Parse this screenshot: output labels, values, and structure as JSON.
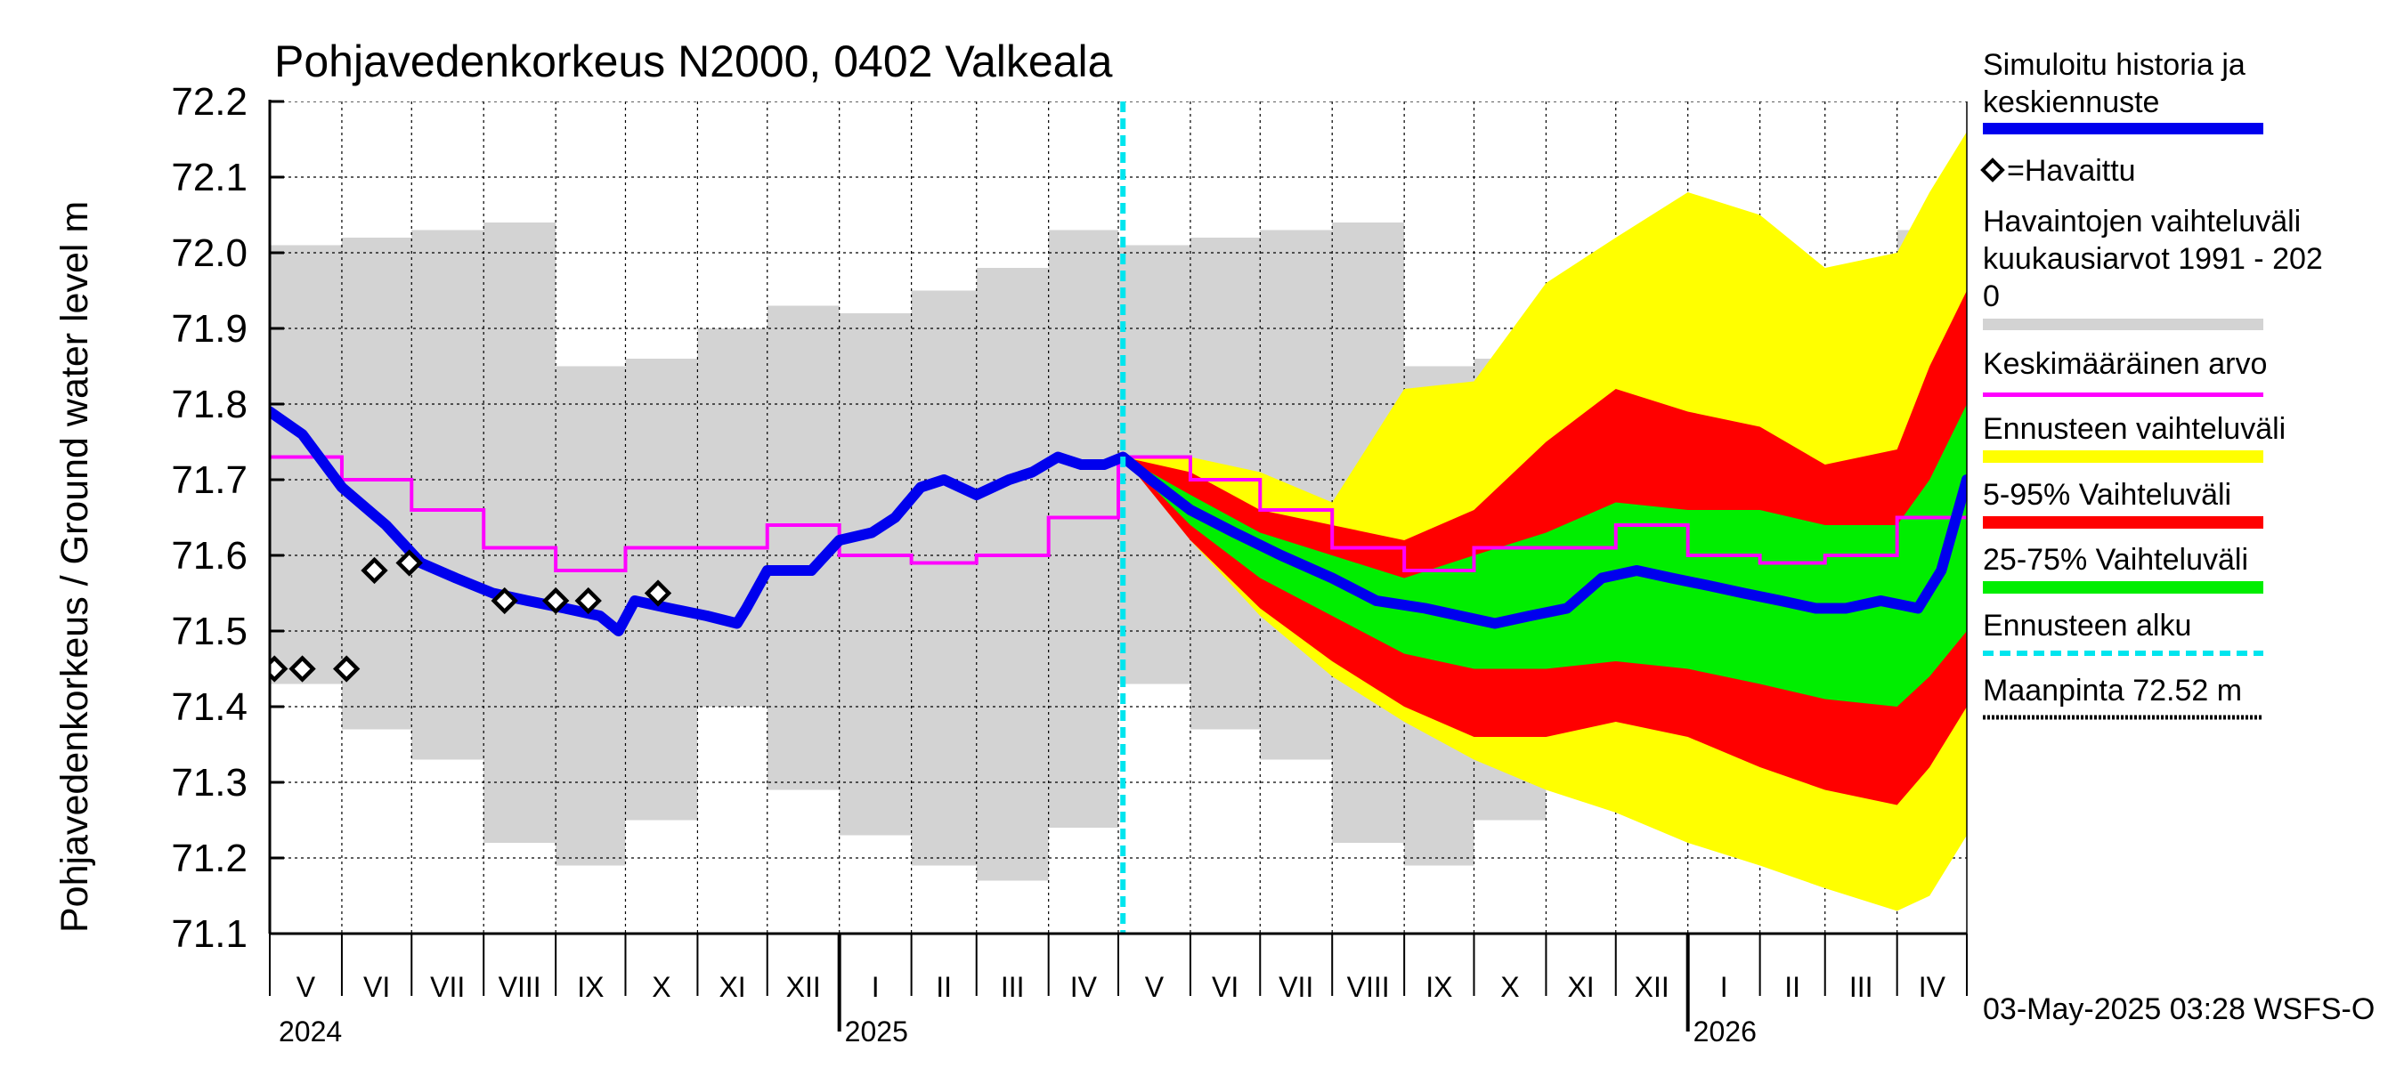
{
  "chart_data": {
    "type": "area",
    "title": "Pohjavedenkorkeus N2000, 0402 Valkeala",
    "ylabel": "Pohjavedenkorkeus / Ground water level   m",
    "ylim": [
      71.1,
      72.2
    ],
    "yticks": [
      71.1,
      71.2,
      71.3,
      71.4,
      71.5,
      71.6,
      71.7,
      71.8,
      71.9,
      72.0,
      72.1,
      72.2
    ],
    "xlim": [
      "2024-05-01",
      "2026-05-01"
    ],
    "month_labels": [
      "V",
      "VI",
      "VII",
      "VIII",
      "IX",
      "X",
      "XI",
      "XII",
      "I",
      "II",
      "III",
      "IV",
      "V",
      "VI",
      "VII",
      "VIII",
      "IX",
      "X",
      "XI",
      "XII",
      "I",
      "II",
      "III",
      "IV"
    ],
    "year_labels": [
      "2024",
      "2025",
      "2026"
    ],
    "forecast_start": "2025-05-03",
    "grid": true,
    "legend_position": "right",
    "colors": {
      "simulated": "#0000ee",
      "observed": "#000000",
      "hist_range": "#d3d3d3",
      "mean": "#ff00ff",
      "forecast_range": "#ffff00",
      "p5_95": "#ff0000",
      "p25_75": "#00ee00",
      "forecast_start": "#00e5ee",
      "ground": "#000000"
    },
    "legend": {
      "simulated": "Simuloitu historia ja\nkeskiennuste",
      "observed": "=Havaittu",
      "hist_range": "Havaintojen vaihteluväli\n kuukausiarvot 1991 - 202\n0",
      "mean": "Keskimääräinen arvo",
      "forecast_range": "Ennusteen vaihteluväli",
      "p5_95": "5-95% Vaihteluväli",
      "p25_75": "25-75% Vaihteluväli",
      "forecast_start": "Ennusteen alku",
      "ground": "Maanpinta 72.52 m"
    },
    "monthly_history": {
      "months": [
        "2024-05",
        "2024-06",
        "2024-07",
        "2024-08",
        "2024-09",
        "2024-10",
        "2024-11",
        "2024-12",
        "2025-01",
        "2025-02",
        "2025-03",
        "2025-04",
        "2025-05",
        "2025-06",
        "2025-07",
        "2025-08",
        "2025-09",
        "2025-10",
        "2025-11",
        "2025-12",
        "2026-01",
        "2026-02",
        "2026-03",
        "2026-04"
      ],
      "max": [
        72.01,
        72.02,
        72.03,
        72.04,
        71.85,
        71.86,
        71.9,
        71.93,
        71.92,
        71.95,
        71.98,
        72.03,
        72.01,
        72.02,
        72.03,
        72.04,
        71.85,
        71.86,
        71.9,
        71.93,
        71.92,
        71.95,
        71.98,
        72.03
      ],
      "min": [
        71.43,
        71.37,
        71.33,
        71.22,
        71.19,
        71.25,
        71.4,
        71.29,
        71.23,
        71.19,
        71.17,
        71.24,
        71.43,
        71.37,
        71.33,
        71.22,
        71.19,
        71.25,
        71.4,
        71.29,
        71.23,
        71.19,
        71.17,
        71.24
      ],
      "mean": [
        71.73,
        71.7,
        71.66,
        71.61,
        71.58,
        71.61,
        71.61,
        71.64,
        71.6,
        71.59,
        71.6,
        71.65,
        71.73,
        71.7,
        71.66,
        71.61,
        71.58,
        71.61,
        71.61,
        71.64,
        71.6,
        71.59,
        71.6,
        71.65
      ]
    },
    "simulated": {
      "x": [
        "2024-05-01",
        "2024-05-15",
        "2024-06-01",
        "2024-06-20",
        "2024-07-05",
        "2024-07-20",
        "2024-08-05",
        "2024-08-20",
        "2024-09-05",
        "2024-09-20",
        "2024-09-28",
        "2024-10-05",
        "2024-10-20",
        "2024-11-05",
        "2024-11-18",
        "2024-11-22",
        "2024-12-01",
        "2024-12-20",
        "2025-01-01",
        "2025-01-15",
        "2025-01-25",
        "2025-02-05",
        "2025-02-15",
        "2025-03-01",
        "2025-03-15",
        "2025-03-25",
        "2025-04-05",
        "2025-04-15",
        "2025-04-25",
        "2025-05-03",
        "2025-05-15",
        "2025-06-01",
        "2025-06-20",
        "2025-07-10",
        "2025-08-01",
        "2025-08-20",
        "2025-09-10",
        "2025-09-25",
        "2025-10-10",
        "2025-10-25",
        "2025-11-10",
        "2025-11-25",
        "2025-12-10",
        "2025-12-25",
        "2026-01-10",
        "2026-01-25",
        "2026-02-10",
        "2026-02-25",
        "2026-03-10",
        "2026-03-25",
        "2026-04-10",
        "2026-04-20",
        "2026-05-01"
      ],
      "y": [
        71.79,
        71.76,
        71.69,
        71.64,
        71.59,
        71.57,
        71.55,
        71.54,
        71.53,
        71.52,
        71.5,
        71.54,
        71.53,
        71.52,
        71.51,
        71.53,
        71.58,
        71.58,
        71.62,
        71.63,
        71.65,
        71.69,
        71.7,
        71.68,
        71.7,
        71.71,
        71.73,
        71.72,
        71.72,
        71.73,
        71.7,
        71.66,
        71.63,
        71.6,
        71.57,
        71.54,
        71.53,
        71.52,
        71.51,
        71.52,
        71.53,
        71.57,
        71.58,
        71.57,
        71.56,
        71.55,
        71.54,
        71.53,
        71.53,
        71.54,
        71.53,
        71.58,
        71.7
      ]
    },
    "observed": {
      "x": [
        "2024-05-03",
        "2024-05-15",
        "2024-06-03",
        "2024-06-15",
        "2024-06-30",
        "2024-08-10",
        "2024-09-01",
        "2024-09-15",
        "2024-10-15"
      ],
      "y": [
        71.45,
        71.45,
        71.45,
        71.58,
        71.59,
        71.54,
        71.54,
        71.54,
        71.55
      ]
    },
    "forecast": {
      "x": [
        "2025-05-03",
        "2025-06-01",
        "2025-07-01",
        "2025-08-01",
        "2025-09-01",
        "2025-10-01",
        "2025-11-01",
        "2025-12-01",
        "2026-01-01",
        "2026-02-01",
        "2026-03-01",
        "2026-04-01",
        "2026-04-15",
        "2026-05-01"
      ],
      "max": [
        71.73,
        71.73,
        71.71,
        71.67,
        71.82,
        71.83,
        71.96,
        72.02,
        72.08,
        72.05,
        71.98,
        72.0,
        72.08,
        72.16
      ],
      "p95": [
        71.73,
        71.71,
        71.66,
        71.64,
        71.62,
        71.66,
        71.75,
        71.82,
        71.79,
        71.77,
        71.72,
        71.74,
        71.85,
        71.95
      ],
      "p75": [
        71.73,
        71.68,
        71.63,
        71.6,
        71.57,
        71.6,
        71.63,
        71.67,
        71.66,
        71.66,
        71.64,
        71.64,
        71.7,
        71.8
      ],
      "p25": [
        71.73,
        71.64,
        71.57,
        71.52,
        71.47,
        71.45,
        71.45,
        71.46,
        71.45,
        71.43,
        71.41,
        71.4,
        71.44,
        71.5
      ],
      "p5": [
        71.73,
        71.62,
        71.53,
        71.46,
        71.4,
        71.36,
        71.36,
        71.38,
        71.36,
        71.32,
        71.29,
        71.27,
        71.32,
        71.4
      ],
      "min": [
        71.73,
        71.62,
        71.52,
        71.44,
        71.38,
        71.33,
        71.29,
        71.26,
        71.22,
        71.19,
        71.16,
        71.13,
        71.15,
        71.23
      ]
    },
    "timestamp": "03-May-2025 03:28 WSFS-O"
  }
}
